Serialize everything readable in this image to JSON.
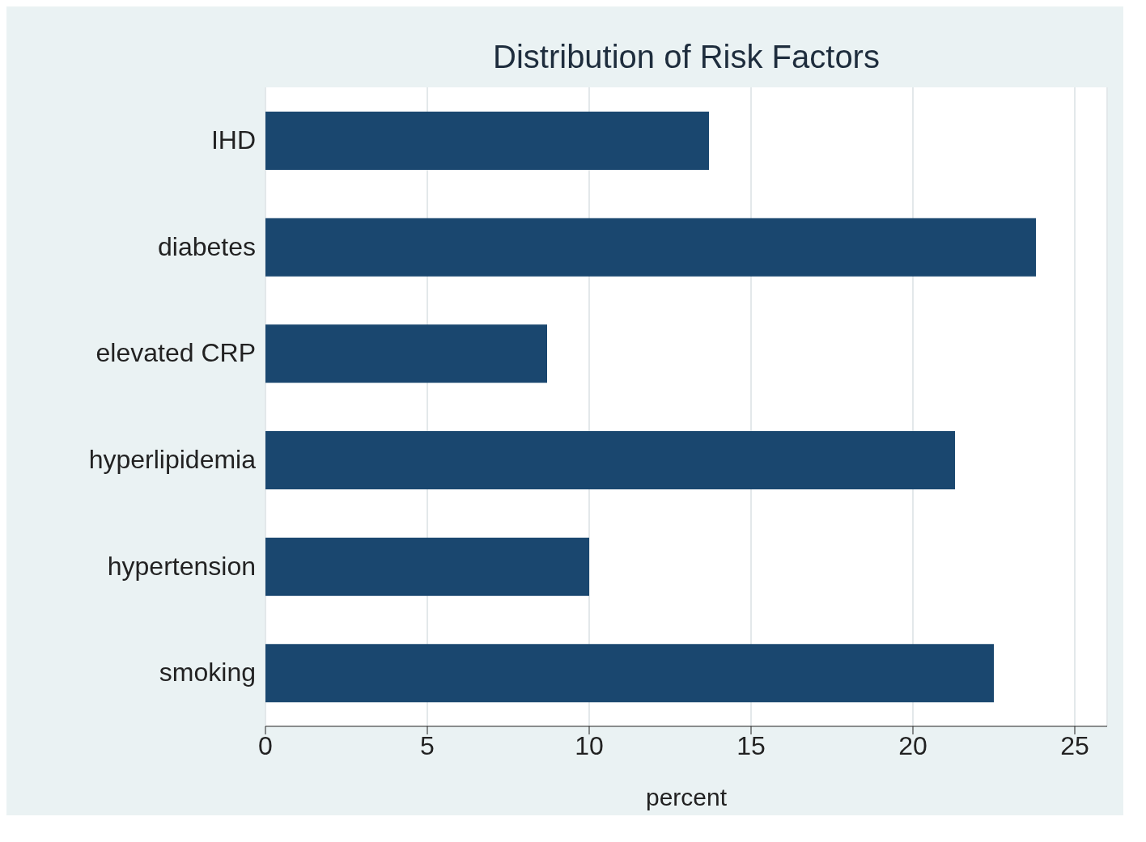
{
  "chart_data": {
    "type": "bar",
    "orientation": "horizontal",
    "title": "Distribution of Risk Factors",
    "xlabel": "percent",
    "categories": [
      "IHD",
      "diabetes",
      "elevated CRP",
      "hyperlipidemia",
      "hypertension",
      "smoking"
    ],
    "values": [
      13.7,
      23.8,
      8.7,
      21.3,
      10.0,
      22.5
    ],
    "color": "#1a476f",
    "xlim": [
      0,
      26
    ],
    "xticks": [
      0,
      5,
      10,
      15,
      20,
      25
    ],
    "grid": "x"
  }
}
